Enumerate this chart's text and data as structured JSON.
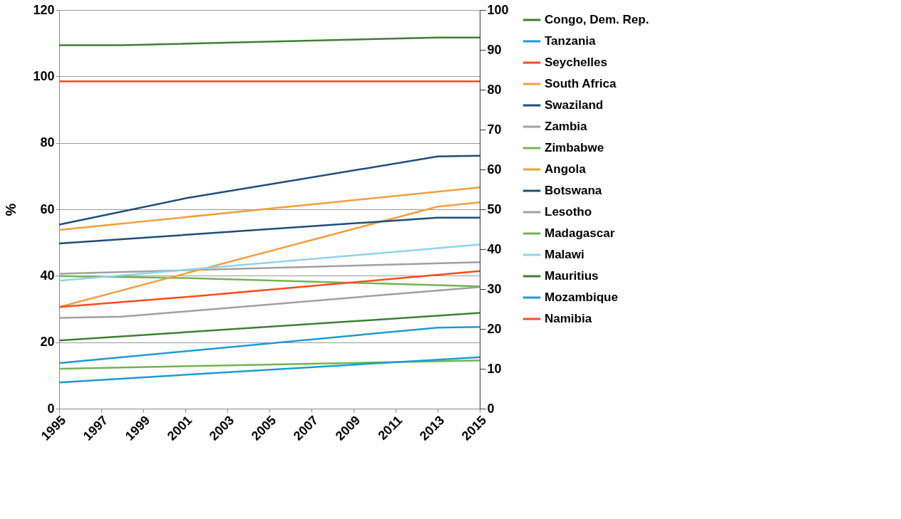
{
  "chart_data": {
    "type": "line",
    "ylabel": "%",
    "xlim": [
      1995,
      2015
    ],
    "xticks": [
      1995,
      1997,
      1999,
      2001,
      2003,
      2005,
      2007,
      2009,
      2011,
      2013,
      2015
    ],
    "ylim": [
      0,
      120
    ],
    "yticks": [
      0,
      20,
      40,
      60,
      80,
      100,
      120
    ],
    "y2lim": [
      0,
      100
    ],
    "y2ticks": [
      0,
      10,
      20,
      30,
      40,
      50,
      60,
      70,
      80,
      90,
      100
    ],
    "grid": "y",
    "legend": "right",
    "marker": "none",
    "line_style": "solid",
    "series": [
      {
        "name": "Congo, Dem. Rep.",
        "color": "#3f7f35",
        "x": [
          1995,
          1998,
          2013,
          2015
        ],
        "values": [
          109.4,
          109.4,
          111.7,
          111.7
        ]
      },
      {
        "name": "Tanzania",
        "color": "#1f9ad6",
        "x": [
          1995,
          2013,
          2015
        ],
        "values": [
          13.7,
          24.4,
          24.6
        ]
      },
      {
        "name": "Seychelles",
        "color": "#ff4b1f",
        "x": [
          1995,
          2015
        ],
        "values": [
          98.5,
          98.5
        ]
      },
      {
        "name": "South Africa",
        "color": "#f0a040",
        "x": [
          1995,
          2015
        ],
        "values": [
          53.8,
          66.6
        ]
      },
      {
        "name": "Swaziland",
        "color": "#1f4e79",
        "x": [
          1995,
          2001,
          2013,
          2015
        ],
        "values": [
          55.4,
          63.3,
          75.9,
          76.1
        ]
      },
      {
        "name": "Zambia",
        "color": "#a0a0a0",
        "x": [
          1995,
          2015
        ],
        "values": [
          40.6,
          44.1
        ]
      },
      {
        "name": "Zimbabwe",
        "color": "#70b552",
        "x": [
          1995,
          2001,
          2015
        ],
        "values": [
          39.9,
          39.3,
          36.8
        ]
      },
      {
        "name": "Angola",
        "color": "#f0a040",
        "x": [
          1995,
          2013,
          2015
        ],
        "values": [
          30.6,
          60.8,
          62.1
        ]
      },
      {
        "name": "Botswana",
        "color": "#1f4e79",
        "x": [
          1995,
          2013,
          2015
        ],
        "values": [
          49.7,
          57.5,
          57.5
        ]
      },
      {
        "name": "Lesotho",
        "color": "#a0a0a0",
        "x": [
          1995,
          1998,
          2015
        ],
        "values": [
          27.3,
          27.7,
          36.6
        ]
      },
      {
        "name": "Madagascar",
        "color": "#70b552",
        "x": [
          1995,
          2015
        ],
        "values": [
          12.0,
          14.5
        ]
      },
      {
        "name": "Malawi",
        "color": "#8fd3ea",
        "x": [
          1995,
          2015
        ],
        "values": [
          38.5,
          49.4
        ]
      },
      {
        "name": "Mauritius",
        "color": "#3f7f35",
        "x": [
          1995,
          2015
        ],
        "values": [
          20.5,
          28.8
        ]
      },
      {
        "name": "Mozambique",
        "color": "#1f9ad6",
        "x": [
          1995,
          2015
        ],
        "values": [
          7.9,
          15.5
        ]
      },
      {
        "name": "Namibia",
        "color": "#ff4b1f",
        "x": [
          1995,
          2002,
          2015
        ],
        "values": [
          30.6,
          34.1,
          41.4
        ]
      }
    ]
  }
}
